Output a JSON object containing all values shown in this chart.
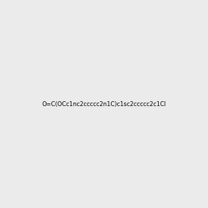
{
  "smiles": "O=C(OCc1nc2ccccc2n1C)c1sc2ccccc2c1Cl",
  "bg_color": "#ebebeb",
  "bond_color": "#404040",
  "aromatic_color": "#404040",
  "S_color": "#c8a000",
  "O_color": "#ff2000",
  "N_color": "#0000cc",
  "Cl_color": "#00cc00",
  "figsize": [
    3.0,
    3.0
  ],
  "dpi": 100
}
